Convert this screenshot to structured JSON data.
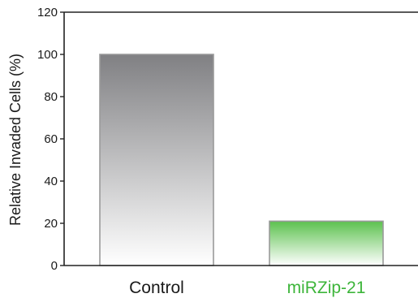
{
  "chart_data": {
    "type": "bar",
    "title": "",
    "xlabel": "",
    "ylabel": "Relative Invaded Cells (%)",
    "ylim": [
      0,
      120
    ],
    "yticks": [
      0,
      20,
      40,
      60,
      80,
      100,
      120
    ],
    "grid": false,
    "categories": [
      "Control",
      "miRZip-21"
    ],
    "values": [
      100,
      21
    ],
    "colors": {
      "Control": {
        "top": "#808083",
        "bottom": "#ffffff",
        "label": "#1a1a1a",
        "edge": "#9a9a9a"
      },
      "miRZip-21": {
        "top": "#5cc14e",
        "bottom": "#ffffff",
        "label": "#3db53a",
        "edge": "#9a9a9a"
      }
    }
  }
}
